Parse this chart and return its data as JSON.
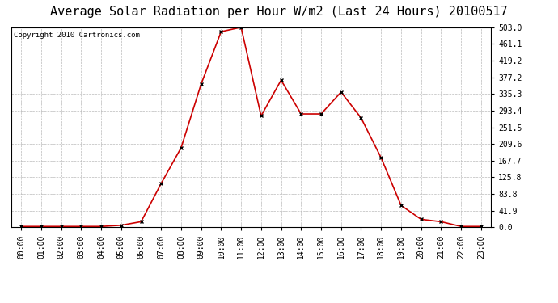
{
  "title": "Average Solar Radiation per Hour W/m2 (Last 24 Hours) 20100517",
  "copyright_text": "Copyright 2010 Cartronics.com",
  "hours": [
    "00:00",
    "01:00",
    "02:00",
    "03:00",
    "04:00",
    "05:00",
    "06:00",
    "07:00",
    "08:00",
    "09:00",
    "10:00",
    "11:00",
    "12:00",
    "13:00",
    "14:00",
    "15:00",
    "16:00",
    "17:00",
    "18:00",
    "19:00",
    "20:00",
    "21:00",
    "22:00",
    "23:00"
  ],
  "values": [
    2.0,
    2.0,
    2.0,
    2.0,
    2.0,
    5.0,
    14.0,
    110.0,
    200.0,
    360.0,
    492.0,
    503.0,
    280.0,
    370.0,
    285.0,
    285.0,
    340.0,
    275.0,
    175.0,
    55.0,
    20.0,
    14.0,
    2.0,
    2.0
  ],
  "y_ticks": [
    0.0,
    41.9,
    83.8,
    125.8,
    167.7,
    209.6,
    251.5,
    293.4,
    335.3,
    377.2,
    419.2,
    461.1,
    503.0
  ],
  "ylim": [
    0.0,
    503.0
  ],
  "line_color": "#cc0000",
  "marker": "x",
  "marker_color": "#000000",
  "grid_color": "#bbbbbb",
  "bg_color": "#ffffff",
  "title_fontsize": 11,
  "copyright_fontsize": 6.5,
  "tick_fontsize": 7,
  "title_font": "monospace"
}
